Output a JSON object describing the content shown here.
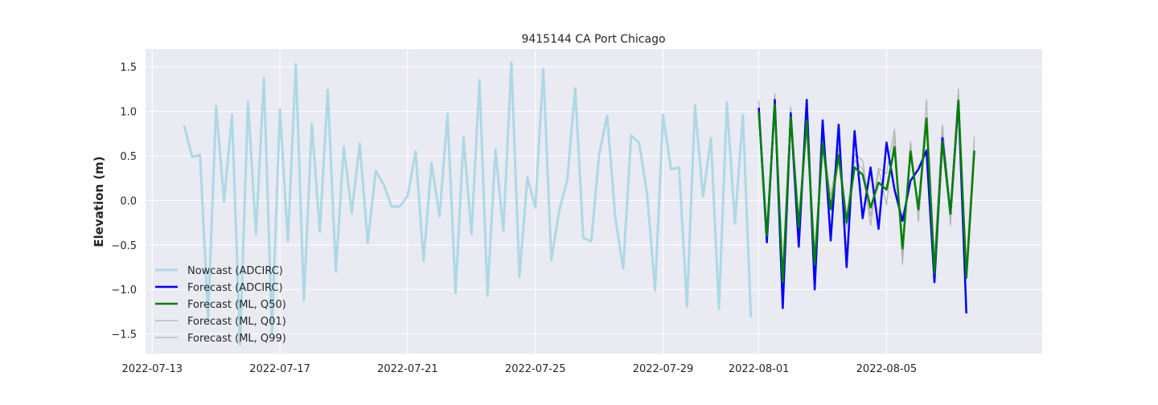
{
  "chart_data": {
    "type": "line",
    "title": "9415144 CA Port Chicago",
    "xlabel": "",
    "ylabel": "Elevation (m)",
    "x_axis_type": "date",
    "xlim": [
      "2022-07-12T19:00",
      "2022-08-09T21:00"
    ],
    "ylim": [
      -1.72,
      1.7
    ],
    "x_ticks": [
      "2022-07-13",
      "2022-07-17",
      "2022-07-21",
      "2022-07-25",
      "2022-07-29",
      "2022-08-01",
      "2022-08-05"
    ],
    "y_ticks": [
      -1.5,
      -1.0,
      -0.5,
      0.0,
      0.5,
      1.0,
      1.5
    ],
    "y_tick_labels": [
      "−1.5",
      "−1.0",
      "−0.5",
      "0.0",
      "0.5",
      "1.0",
      "1.5"
    ],
    "grid": true,
    "background": "#eaeaf2",
    "legend_position": "lower-left",
    "series": [
      {
        "name": "Nowcast (ADCIRC)",
        "color": "#add8e6",
        "x": [
          "2022-07-14T00:00",
          "2022-07-14T06:00",
          "2022-07-14T12:00",
          "2022-07-14T18:00",
          "2022-07-15T00:00",
          "2022-07-15T06:00",
          "2022-07-15T12:00",
          "2022-07-15T18:00",
          "2022-07-16T00:00",
          "2022-07-16T06:00",
          "2022-07-16T12:00",
          "2022-07-16T18:00",
          "2022-07-17T00:00",
          "2022-07-17T06:00",
          "2022-07-17T12:00",
          "2022-07-17T18:00",
          "2022-07-18T00:00",
          "2022-07-18T06:00",
          "2022-07-18T12:00",
          "2022-07-18T18:00",
          "2022-07-19T00:00",
          "2022-07-19T06:00",
          "2022-07-19T12:00",
          "2022-07-19T18:00",
          "2022-07-20T00:00",
          "2022-07-20T06:00",
          "2022-07-20T12:00",
          "2022-07-20T18:00",
          "2022-07-21T00:00",
          "2022-07-21T06:00",
          "2022-07-21T12:00",
          "2022-07-21T18:00",
          "2022-07-22T00:00",
          "2022-07-22T06:00",
          "2022-07-22T12:00",
          "2022-07-22T18:00",
          "2022-07-23T00:00",
          "2022-07-23T06:00",
          "2022-07-23T12:00",
          "2022-07-23T18:00",
          "2022-07-24T00:00",
          "2022-07-24T06:00",
          "2022-07-24T12:00",
          "2022-07-24T18:00",
          "2022-07-25T00:00",
          "2022-07-25T06:00",
          "2022-07-25T12:00",
          "2022-07-25T18:00",
          "2022-07-26T00:00",
          "2022-07-26T06:00",
          "2022-07-26T12:00",
          "2022-07-26T18:00",
          "2022-07-27T00:00",
          "2022-07-27T06:00",
          "2022-07-27T12:00",
          "2022-07-27T18:00",
          "2022-07-28T00:00",
          "2022-07-28T06:00",
          "2022-07-28T12:00",
          "2022-07-28T18:00",
          "2022-07-29T00:00",
          "2022-07-29T06:00",
          "2022-07-29T12:00",
          "2022-07-29T18:00",
          "2022-07-30T00:00",
          "2022-07-30T06:00",
          "2022-07-30T12:00",
          "2022-07-30T18:00",
          "2022-07-31T00:00",
          "2022-07-31T06:00",
          "2022-07-31T12:00",
          "2022-07-31T18:00"
        ],
        "y": [
          0.84,
          0.49,
          0.51,
          -1.33,
          1.06,
          -0.01,
          0.96,
          -1.62,
          1.11,
          -0.38,
          1.37,
          -1.48,
          1.02,
          -0.46,
          1.53,
          -1.12,
          0.86,
          -0.35,
          1.24,
          -0.8,
          0.6,
          -0.14,
          0.64,
          -0.48,
          0.33,
          0.18,
          -0.07,
          -0.07,
          0.05,
          0.55,
          -0.68,
          0.42,
          -0.18,
          0.97,
          -1.04,
          0.71,
          -0.38,
          1.35,
          -1.07,
          0.57,
          -0.34,
          1.55,
          -0.86,
          0.26,
          -0.08,
          1.48,
          -0.67,
          -0.11,
          0.23,
          1.26,
          -0.42,
          -0.46,
          0.52,
          0.95,
          -0.18,
          -0.77,
          0.73,
          0.65,
          0.07,
          -1.01,
          0.96,
          0.35,
          0.37,
          -1.19,
          1.07,
          0.04,
          0.7,
          -1.22,
          1.1,
          -0.26,
          0.96,
          -1.31
        ]
      },
      {
        "name": "Forecast (ADCIRC)",
        "color": "#0000ff",
        "x": [
          "2022-08-01T00:00",
          "2022-08-01T06:00",
          "2022-08-01T12:00",
          "2022-08-01T18:00",
          "2022-08-02T00:00",
          "2022-08-02T06:00",
          "2022-08-02T12:00",
          "2022-08-02T18:00",
          "2022-08-03T00:00",
          "2022-08-03T06:00",
          "2022-08-03T12:00",
          "2022-08-03T18:00",
          "2022-08-04T00:00",
          "2022-08-04T06:00",
          "2022-08-04T12:00",
          "2022-08-04T18:00",
          "2022-08-05T00:00",
          "2022-08-05T06:00",
          "2022-08-05T12:00",
          "2022-08-05T18:00",
          "2022-08-06T00:00",
          "2022-08-06T06:00",
          "2022-08-06T12:00",
          "2022-08-06T18:00",
          "2022-08-07T00:00",
          "2022-08-07T06:00",
          "2022-08-07T12:00",
          "2022-08-07T18:00"
        ],
        "y": [
          1.04,
          -0.47,
          1.13,
          -1.21,
          0.98,
          -0.52,
          1.13,
          -1.0,
          0.9,
          -0.45,
          0.85,
          -0.75,
          0.78,
          -0.2,
          0.37,
          -0.32,
          0.65,
          0.12,
          -0.23,
          0.22,
          0.35,
          0.56,
          -0.92,
          0.7,
          -0.15,
          1.12,
          -1.27,
          null
        ]
      },
      {
        "name": "Forecast (ML, Q50)",
        "color": "#008000",
        "x": [
          "2022-08-01T00:00",
          "2022-08-01T06:00",
          "2022-08-01T12:00",
          "2022-08-01T18:00",
          "2022-08-02T00:00",
          "2022-08-02T06:00",
          "2022-08-02T12:00",
          "2022-08-02T18:00",
          "2022-08-03T00:00",
          "2022-08-03T06:00",
          "2022-08-03T12:00",
          "2022-08-03T18:00",
          "2022-08-04T00:00",
          "2022-08-04T06:00",
          "2022-08-04T12:00",
          "2022-08-04T18:00",
          "2022-08-05T00:00",
          "2022-08-05T06:00",
          "2022-08-05T12:00",
          "2022-08-05T18:00",
          "2022-08-06T00:00",
          "2022-08-06T06:00",
          "2022-08-06T12:00",
          "2022-08-06T18:00",
          "2022-08-07T00:00",
          "2022-08-07T06:00",
          "2022-08-07T12:00",
          "2022-08-07T18:00"
        ],
        "y": [
          0.99,
          -0.4,
          1.08,
          -0.92,
          0.93,
          -0.3,
          0.9,
          -0.72,
          0.65,
          -0.1,
          0.51,
          -0.25,
          0.37,
          0.29,
          -0.08,
          0.2,
          0.12,
          0.6,
          -0.54,
          0.55,
          -0.1,
          0.92,
          -0.82,
          0.66,
          -0.15,
          1.12,
          -0.87,
          0.56
        ]
      },
      {
        "name": "Forecast (ML, Q01)",
        "color": "#b0b0b0",
        "x": [
          "2022-08-01T00:00",
          "2022-08-01T06:00",
          "2022-08-01T12:00",
          "2022-08-01T18:00",
          "2022-08-02T00:00",
          "2022-08-02T06:00",
          "2022-08-02T12:00",
          "2022-08-02T18:00",
          "2022-08-03T00:00",
          "2022-08-03T06:00",
          "2022-08-03T12:00",
          "2022-08-03T18:00",
          "2022-08-04T00:00",
          "2022-08-04T06:00",
          "2022-08-04T12:00",
          "2022-08-04T18:00",
          "2022-08-05T00:00",
          "2022-08-05T06:00",
          "2022-08-05T12:00",
          "2022-08-05T18:00",
          "2022-08-06T00:00",
          "2022-08-06T06:00",
          "2022-08-06T12:00",
          "2022-08-06T18:00",
          "2022-08-07T00:00",
          "2022-08-07T06:00",
          "2022-08-07T12:00",
          "2022-08-07T18:00"
        ],
        "y": [
          0.98,
          -0.38,
          1.05,
          -0.95,
          0.9,
          -0.28,
          0.85,
          -0.68,
          0.6,
          -0.05,
          0.45,
          -0.3,
          0.45,
          0.35,
          -0.28,
          0.35,
          -0.05,
          0.72,
          -0.72,
          0.66,
          -0.24,
          0.85,
          -0.75,
          0.84,
          -0.28,
          1.0,
          -0.75,
          0.68
        ]
      },
      {
        "name": "Forecast (ML, Q99)",
        "color": "#b0b0b0",
        "x": [
          "2022-08-01T00:00",
          "2022-08-01T06:00",
          "2022-08-01T12:00",
          "2022-08-01T18:00",
          "2022-08-02T00:00",
          "2022-08-02T06:00",
          "2022-08-02T12:00",
          "2022-08-02T18:00",
          "2022-08-03T00:00",
          "2022-08-03T06:00",
          "2022-08-03T12:00",
          "2022-08-03T18:00",
          "2022-08-04T00:00",
          "2022-08-04T06:00",
          "2022-08-04T12:00",
          "2022-08-04T18:00",
          "2022-08-05T00:00",
          "2022-08-05T06:00",
          "2022-08-05T12:00",
          "2022-08-05T18:00",
          "2022-08-06T00:00",
          "2022-08-06T06:00",
          "2022-08-06T12:00",
          "2022-08-06T18:00",
          "2022-08-07T00:00",
          "2022-08-07T06:00",
          "2022-08-07T12:00",
          "2022-08-07T18:00"
        ],
        "y": [
          1.12,
          -0.3,
          1.2,
          -0.82,
          1.05,
          -0.2,
          0.98,
          -0.6,
          0.72,
          0.05,
          0.58,
          -0.18,
          0.52,
          0.45,
          -0.18,
          0.36,
          0.3,
          0.8,
          -0.62,
          0.66,
          -0.12,
          1.13,
          -0.62,
          0.85,
          -0.1,
          1.25,
          -0.7,
          0.72
        ]
      }
    ]
  }
}
